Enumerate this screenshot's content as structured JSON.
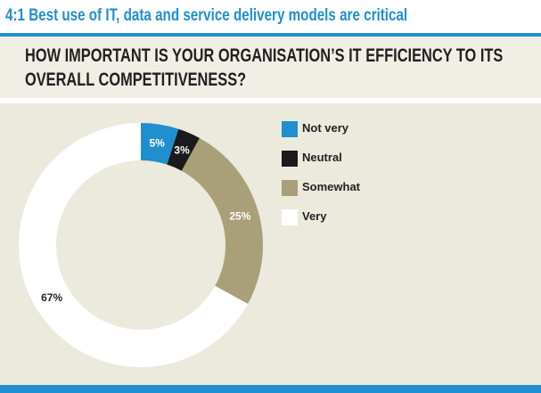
{
  "header": {
    "title": "4:1 Best use of IT, data and service delivery models are critical"
  },
  "question": "HOW IMPORTANT IS YOUR ORGANISATION’S IT EFFICIENCY TO ITS OVERALL COMPETITIVENESS?",
  "colors": {
    "accent": "#1f8fce",
    "panel_bg": "#ece9dd",
    "question_bg": "#f1eee6"
  },
  "chart_data": {
    "type": "pie",
    "style": "donut",
    "title": "",
    "legend_position": "right",
    "slices": [
      {
        "label": "Not very",
        "value": 5,
        "display": "5%",
        "color": "#1f8fce"
      },
      {
        "label": "Neutral",
        "value": 3,
        "display": "3%",
        "color": "#1a1a1a"
      },
      {
        "label": "Somewhat",
        "value": 25,
        "display": "25%",
        "color": "#a9a07a"
      },
      {
        "label": "Very",
        "value": 67,
        "display": "67%",
        "color": "#ffffff"
      }
    ]
  }
}
